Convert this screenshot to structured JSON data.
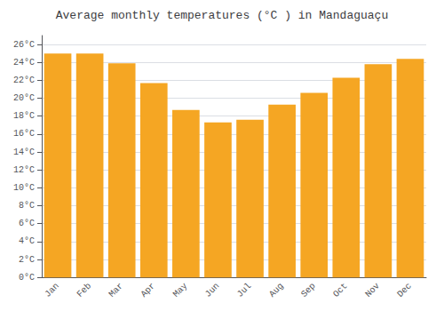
{
  "chart_data": {
    "type": "bar",
    "title": "Average monthly temperatures (°C ) in Mandaguaçu",
    "categories": [
      "Jan",
      "Feb",
      "Mar",
      "Apr",
      "May",
      "Jun",
      "Jul",
      "Aug",
      "Sep",
      "Oct",
      "Nov",
      "Dec"
    ],
    "values": [
      25.0,
      25.0,
      23.9,
      21.7,
      18.7,
      17.3,
      17.6,
      19.3,
      20.6,
      22.3,
      23.8,
      24.4
    ],
    "color": "#F5A623",
    "ylim": [
      0,
      27
    ],
    "yticks": [
      {
        "value": 0,
        "label": "0°C"
      },
      {
        "value": 2,
        "label": "2°C"
      },
      {
        "value": 4,
        "label": "4°C"
      },
      {
        "value": 6,
        "label": "6°C"
      },
      {
        "value": 8,
        "label": "8°C"
      },
      {
        "value": 10,
        "label": "10°C"
      },
      {
        "value": 12,
        "label": "12°C"
      },
      {
        "value": 14,
        "label": "14°C"
      },
      {
        "value": 16,
        "label": "16°C"
      },
      {
        "value": 18,
        "label": "18°C"
      },
      {
        "value": 20,
        "label": "20°C"
      },
      {
        "value": 22,
        "label": "22°C"
      },
      {
        "value": 24,
        "label": "24°C"
      },
      {
        "value": 26,
        "label": "26°C"
      }
    ],
    "grid": true
  }
}
